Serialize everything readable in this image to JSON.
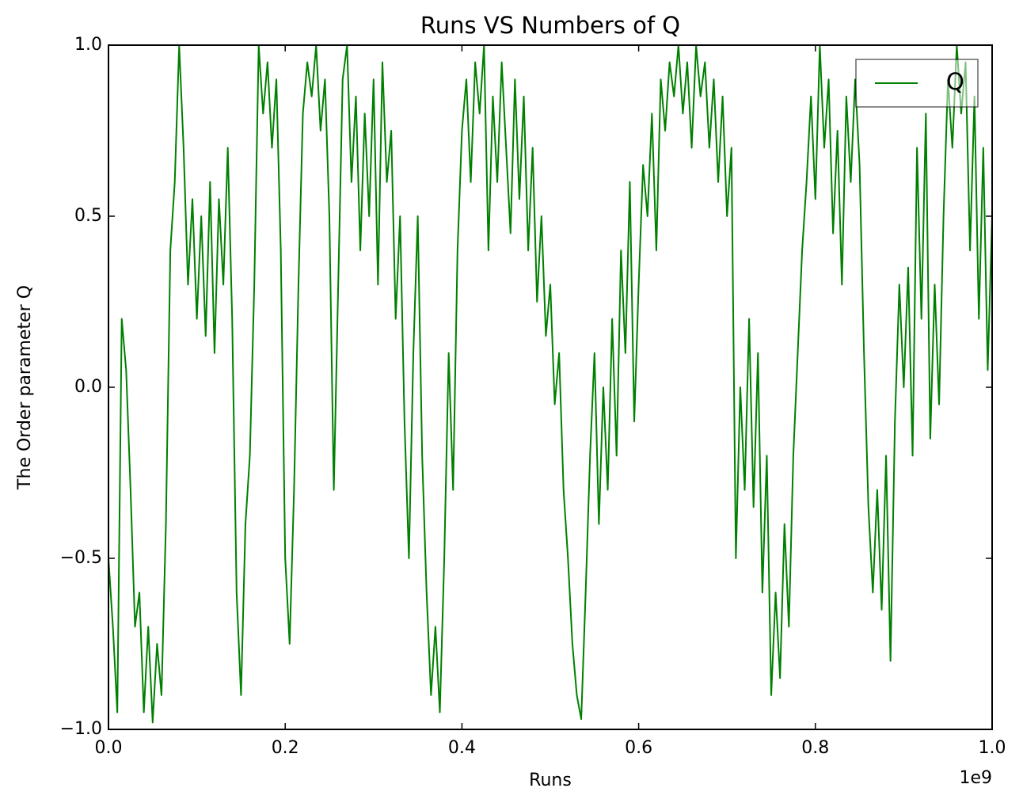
{
  "chart_data": {
    "type": "line",
    "title": "Runs VS Numbers of Q",
    "xlabel": "Runs",
    "ylabel": "The Order parameter Q",
    "x_offset_label": "1e9",
    "legend": "upper right",
    "x": [
      0,
      0.005,
      0.01,
      0.015,
      0.02,
      0.025,
      0.03,
      0.035,
      0.04,
      0.045,
      0.05,
      0.055,
      0.06,
      0.065,
      0.07,
      0.075,
      0.08,
      0.085,
      0.09,
      0.095,
      0.1,
      0.105,
      0.11,
      0.115,
      0.12,
      0.125,
      0.13,
      0.135,
      0.14,
      0.145,
      0.15,
      0.155,
      0.16,
      0.165,
      0.17,
      0.175,
      0.18,
      0.185,
      0.19,
      0.195,
      0.2,
      0.205,
      0.21,
      0.215,
      0.22,
      0.225,
      0.23,
      0.235,
      0.24,
      0.245,
      0.25,
      0.255,
      0.26,
      0.265,
      0.27,
      0.275,
      0.28,
      0.285,
      0.29,
      0.295,
      0.3,
      0.305,
      0.31,
      0.315,
      0.32,
      0.325,
      0.33,
      0.335,
      0.34,
      0.345,
      0.35,
      0.355,
      0.36,
      0.365,
      0.37,
      0.375,
      0.38,
      0.385,
      0.39,
      0.395,
      0.4,
      0.405,
      0.41,
      0.415,
      0.42,
      0.425,
      0.43,
      0.435,
      0.44,
      0.445,
      0.45,
      0.455,
      0.46,
      0.465,
      0.47,
      0.475,
      0.48,
      0.485,
      0.49,
      0.495,
      0.5,
      0.505,
      0.51,
      0.515,
      0.52,
      0.525,
      0.53,
      0.535,
      0.54,
      0.545,
      0.55,
      0.555,
      0.56,
      0.565,
      0.57,
      0.575,
      0.58,
      0.585,
      0.59,
      0.595,
      0.6,
      0.605,
      0.61,
      0.615,
      0.62,
      0.625,
      0.63,
      0.635,
      0.64,
      0.645,
      0.65,
      0.655,
      0.66,
      0.665,
      0.67,
      0.675,
      0.68,
      0.685,
      0.69,
      0.695,
      0.7,
      0.705,
      0.71,
      0.715,
      0.72,
      0.725,
      0.73,
      0.735,
      0.74,
      0.745,
      0.75,
      0.755,
      0.76,
      0.765,
      0.77,
      0.775,
      0.78,
      0.785,
      0.79,
      0.795,
      0.8,
      0.805,
      0.81,
      0.815,
      0.82,
      0.825,
      0.83,
      0.835,
      0.84,
      0.845,
      0.85,
      0.855,
      0.86,
      0.865,
      0.87,
      0.875,
      0.88,
      0.885,
      0.89,
      0.895,
      0.9,
      0.905,
      0.91,
      0.915,
      0.92,
      0.925,
      0.93,
      0.935,
      0.94,
      0.945,
      0.95,
      0.955,
      0.96,
      0.965,
      0.97,
      0.975,
      0.98,
      0.985,
      0.99,
      0.995,
      1
    ],
    "series": [
      {
        "name": "Q",
        "color": "#008000",
        "values": [
          -0.5,
          -0.7,
          -0.95,
          0.2,
          0.05,
          -0.3,
          -0.7,
          -0.6,
          -0.95,
          -0.7,
          -0.98,
          -0.75,
          -0.9,
          -0.4,
          0.4,
          0.6,
          1.0,
          0.7,
          0.3,
          0.55,
          0.2,
          0.5,
          0.15,
          0.6,
          0.1,
          0.55,
          0.3,
          0.7,
          0.2,
          -0.6,
          -0.9,
          -0.4,
          -0.2,
          0.3,
          1.0,
          0.8,
          0.95,
          0.7,
          0.9,
          0.4,
          -0.5,
          -0.75,
          -0.3,
          0.3,
          0.8,
          0.95,
          0.85,
          1.0,
          0.75,
          0.9,
          0.5,
          -0.3,
          0.3,
          0.9,
          1.0,
          0.6,
          0.85,
          0.4,
          0.8,
          0.5,
          0.9,
          0.3,
          0.95,
          0.6,
          0.75,
          0.2,
          0.5,
          -0.1,
          -0.5,
          0.1,
          0.5,
          -0.2,
          -0.6,
          -0.9,
          -0.7,
          -0.95,
          -0.5,
          0.1,
          -0.3,
          0.4,
          0.75,
          0.9,
          0.6,
          0.95,
          0.8,
          1.0,
          0.4,
          0.85,
          0.6,
          0.95,
          0.7,
          0.45,
          0.9,
          0.55,
          0.85,
          0.4,
          0.7,
          0.25,
          0.5,
          0.15,
          0.3,
          -0.05,
          0.1,
          -0.3,
          -0.5,
          -0.75,
          -0.9,
          -0.97,
          -0.6,
          -0.2,
          0.1,
          -0.4,
          0.0,
          -0.3,
          0.2,
          -0.2,
          0.4,
          0.1,
          0.6,
          -0.1,
          0.3,
          0.65,
          0.5,
          0.8,
          0.4,
          0.9,
          0.75,
          0.95,
          0.85,
          1.0,
          0.8,
          0.95,
          0.7,
          1.0,
          0.85,
          0.95,
          0.7,
          0.9,
          0.6,
          0.85,
          0.5,
          0.7,
          -0.5,
          0.0,
          -0.3,
          0.2,
          -0.35,
          0.1,
          -0.6,
          -0.2,
          -0.9,
          -0.6,
          -0.85,
          -0.4,
          -0.7,
          -0.2,
          0.1,
          0.4,
          0.6,
          0.85,
          0.55,
          1.0,
          0.7,
          0.9,
          0.45,
          0.75,
          0.3,
          0.85,
          0.6,
          0.9,
          0.65,
          0.1,
          -0.35,
          -0.6,
          -0.3,
          -0.65,
          -0.2,
          -0.8,
          -0.1,
          0.3,
          0.0,
          0.35,
          -0.2,
          0.7,
          0.2,
          0.8,
          -0.15,
          0.3,
          -0.05,
          0.5,
          0.9,
          0.7,
          1.0,
          0.8,
          0.95,
          0.4,
          0.85,
          0.2,
          0.7,
          0.05,
          0.5
        ]
      }
    ],
    "xlim": [
      0,
      1
    ],
    "ylim": [
      -1,
      1
    ],
    "xticks": [
      {
        "value": 0,
        "label": "0.0"
      },
      0.2,
      0.4,
      0.6,
      0.8,
      {
        "value": 1,
        "label": "1.0"
      }
    ],
    "yticks": [
      {
        "value": -1,
        "label": "−1.0"
      },
      {
        "value": -0.5,
        "label": "−0.5"
      },
      {
        "value": 0,
        "label": "0.0"
      },
      0.5,
      {
        "value": 1,
        "label": "1.0"
      }
    ]
  }
}
